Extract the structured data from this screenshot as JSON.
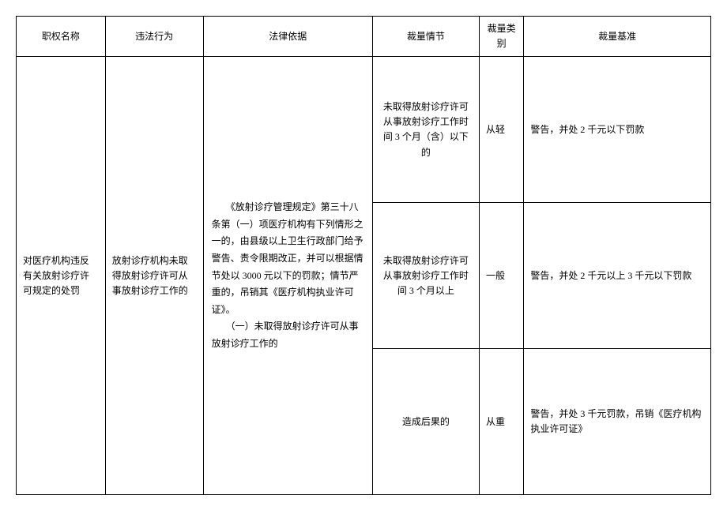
{
  "table": {
    "columns": [
      "职权名称",
      "违法行为",
      "法律依据",
      "裁量情节",
      "裁量类别",
      "裁量基准"
    ],
    "authority_name": "对医疗机构违反有关放射诊疗许可规定的处罚",
    "illegal_act": "放射诊疗机构未取得放射诊疗许可从事放射诊疗工作的",
    "legal_basis": "　　《放射诊疗管理规定》第三十八条第（一）项医疗机构有下列情形之一的，由县级以上卫生行政部门给予警告、责令限期改正，并可以根据情节处以 3000 元以下的罚款；情节严重的，吊销其《医疗机构执业许可证》。\n　　（一）未取得放射诊疗许可从事放射诊疗工作的",
    "rows": [
      {
        "circumstance": "未取得放射诊疗许可从事放射诊疗工作时间 3 个月（含）以下的",
        "category": "从轻",
        "standard": "警告，并处 2 千元以下罚款"
      },
      {
        "circumstance": "未取得放射诊疗许可从事放射诊疗工作时间 3 个月以上",
        "category": "一般",
        "standard": "警告，并处 2 千元以上 3 千元以下罚款"
      },
      {
        "circumstance": "造成后果的",
        "category": "从重",
        "standard": "警告，并处 3 千元罚款，吊销《医疗机构执业许可证》"
      }
    ]
  },
  "styles": {
    "border_color": "#000000",
    "background_color": "#ffffff",
    "font_size": 12,
    "text_color": "#000000"
  }
}
